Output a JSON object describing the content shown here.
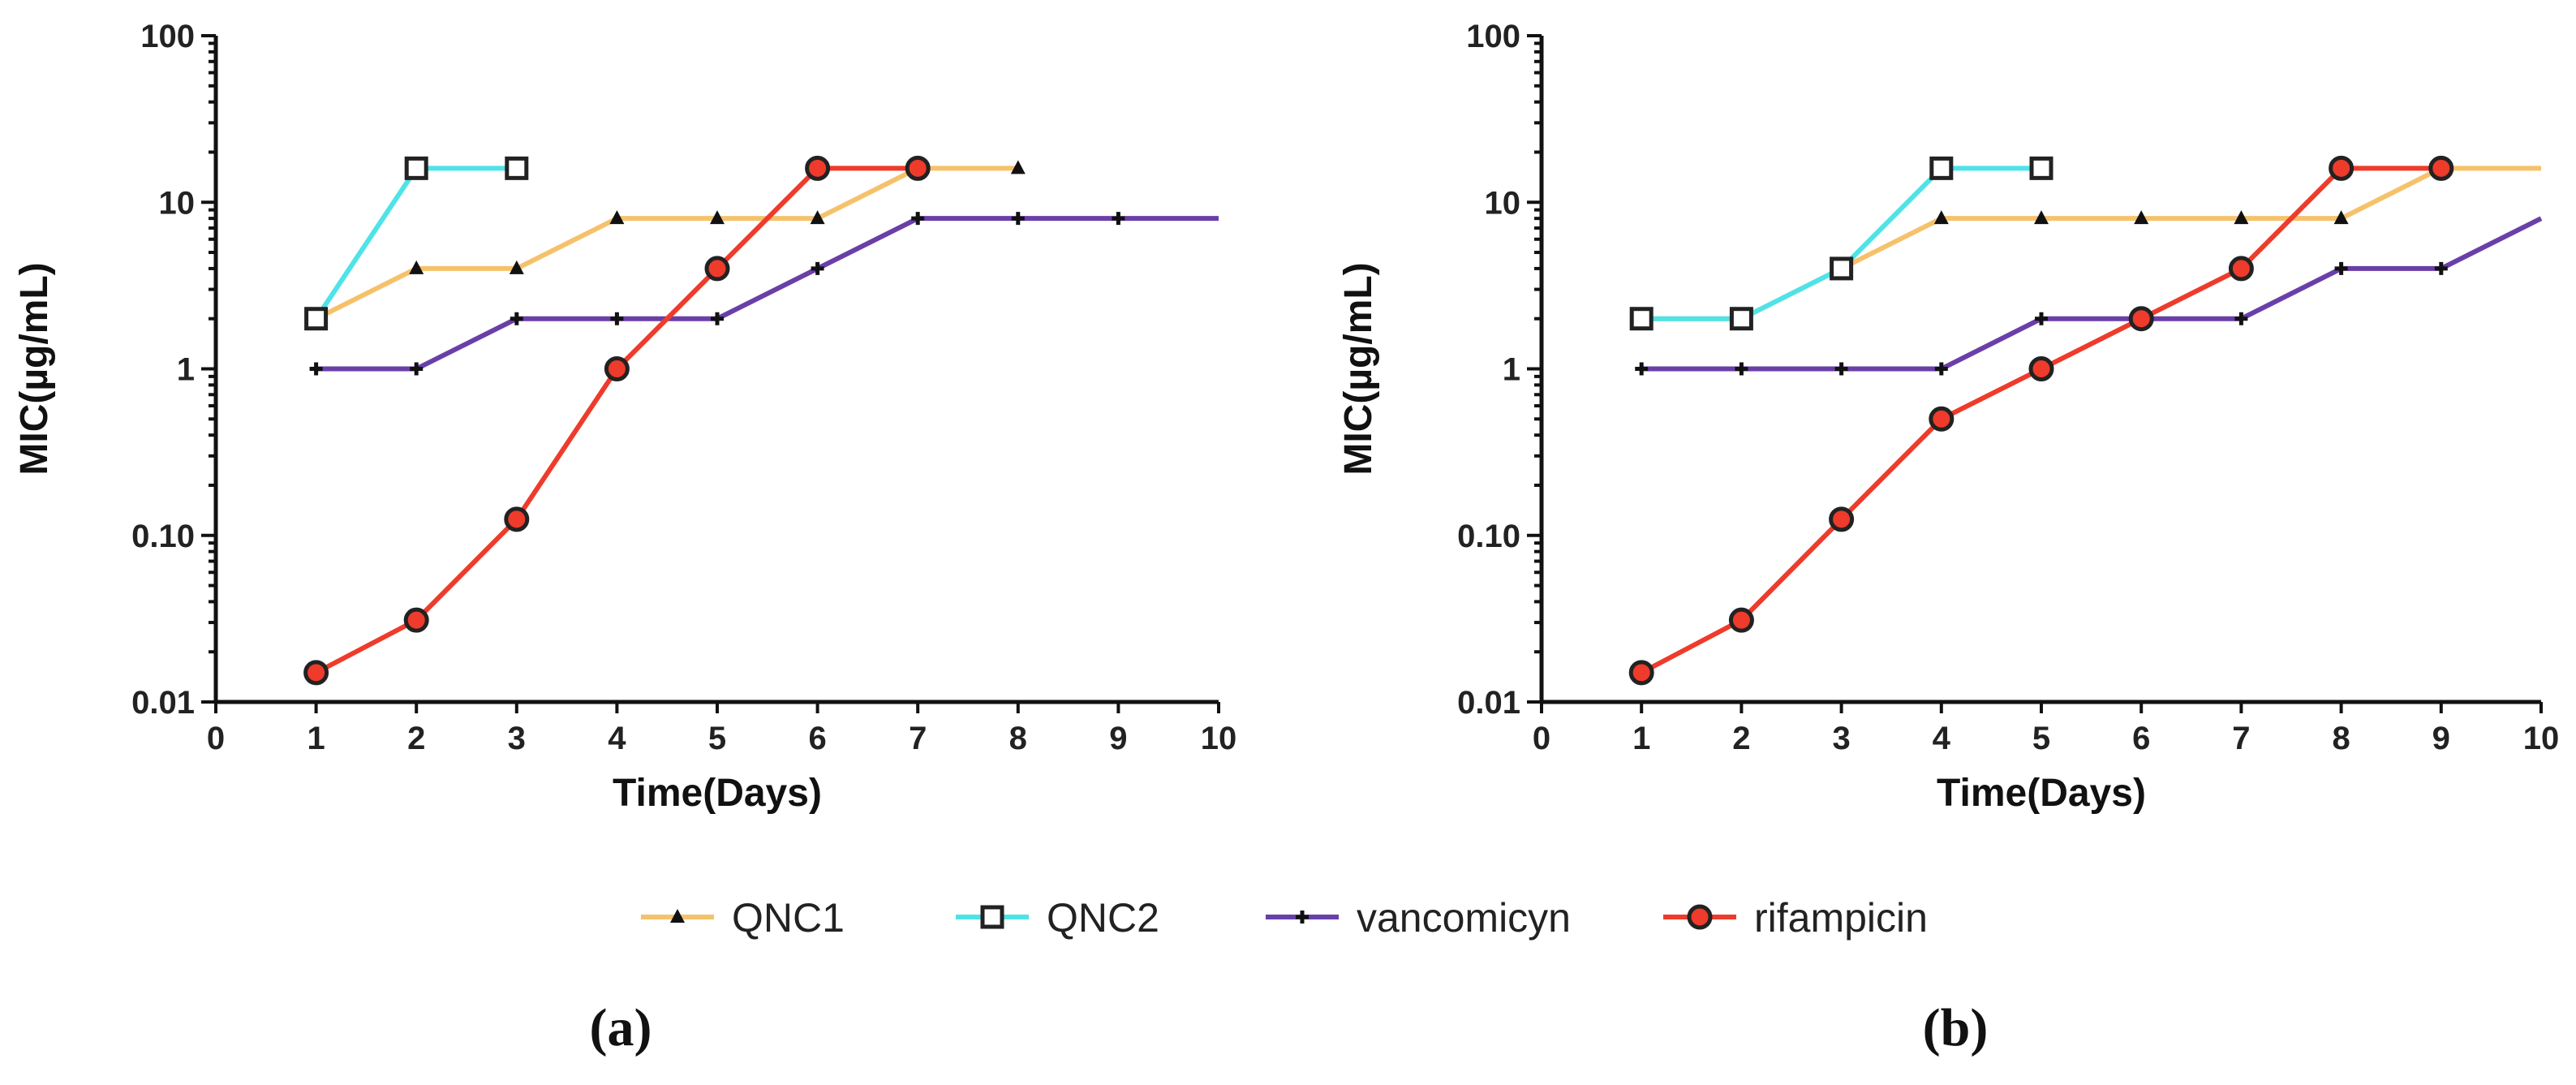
{
  "legend": [
    {
      "key": "qnc1",
      "label": "QNC1"
    },
    {
      "key": "qnc2",
      "label": "QNC2"
    },
    {
      "key": "vanc",
      "label": "vancomicyn"
    },
    {
      "key": "rif",
      "label": "rifampicin"
    }
  ],
  "series_styles": {
    "qnc1": {
      "color": "#f5c26b",
      "marker": "triangle"
    },
    "qnc2": {
      "color": "#4fe3e8",
      "marker": "square"
    },
    "vanc": {
      "color": "#6a3fa8",
      "marker": "plus"
    },
    "rif": {
      "color": "#ee3b2b",
      "marker": "circle"
    }
  },
  "chart_data": [
    {
      "type": "line",
      "panel_label": "(a)",
      "xlabel": "Time(Days)",
      "ylabel": "MIC(µg/mL)",
      "xlim": [
        0,
        10
      ],
      "ylim": [
        0.01,
        100
      ],
      "yscale": "log",
      "xticks": [
        "0",
        "1",
        "2",
        "3",
        "4",
        "5",
        "6",
        "7",
        "8",
        "9",
        "10"
      ],
      "yticks": [
        {
          "value": 0.01,
          "label": "0.01"
        },
        {
          "value": 0.1,
          "label": "0.10"
        },
        {
          "value": 1,
          "label": "1"
        },
        {
          "value": 10,
          "label": "10"
        },
        {
          "value": 100,
          "label": "100"
        }
      ],
      "series": [
        {
          "key": "qnc1",
          "name": "QNC1",
          "x": [
            1,
            2,
            3,
            4,
            5,
            6,
            7,
            8
          ],
          "y": [
            2,
            4,
            4,
            8,
            8,
            8,
            16,
            16
          ]
        },
        {
          "key": "qnc2",
          "name": "QNC2",
          "x": [
            1,
            2,
            3
          ],
          "y": [
            2,
            16,
            16
          ]
        },
        {
          "key": "vanc",
          "name": "vancomicyn",
          "x": [
            1,
            2,
            3,
            4,
            5,
            6,
            7,
            8,
            9,
            10
          ],
          "y": [
            1,
            1,
            2,
            2,
            2,
            4,
            8,
            8,
            8,
            8
          ],
          "last_marker": false
        },
        {
          "key": "rif",
          "name": "rifampicin",
          "x": [
            1,
            2,
            3,
            4,
            5,
            6,
            7
          ],
          "y": [
            0.015,
            0.031,
            0.125,
            1,
            4,
            16,
            16
          ]
        }
      ]
    },
    {
      "type": "line",
      "panel_label": "(b)",
      "xlabel": "Time(Days)",
      "ylabel": "MIC(µg/mL)",
      "xlim": [
        0,
        10
      ],
      "ylim": [
        0.01,
        100
      ],
      "yscale": "log",
      "xticks": [
        "0",
        "1",
        "2",
        "3",
        "4",
        "5",
        "6",
        "7",
        "8",
        "9",
        "10"
      ],
      "yticks": [
        {
          "value": 0.01,
          "label": "0.01"
        },
        {
          "value": 0.1,
          "label": "0.10"
        },
        {
          "value": 1,
          "label": "1"
        },
        {
          "value": 10,
          "label": "10"
        },
        {
          "value": 100,
          "label": "100"
        }
      ],
      "series": [
        {
          "key": "qnc1",
          "name": "QNC1",
          "x": [
            1,
            2,
            3,
            4,
            5,
            6,
            7,
            8,
            9,
            10
          ],
          "y": [
            2,
            2,
            4,
            8,
            8,
            8,
            8,
            8,
            16,
            16
          ],
          "last_marker": false
        },
        {
          "key": "qnc2",
          "name": "QNC2",
          "x": [
            1,
            2,
            3,
            4,
            5
          ],
          "y": [
            2,
            2,
            4,
            16,
            16
          ]
        },
        {
          "key": "vanc",
          "name": "vancomicyn",
          "x": [
            1,
            2,
            3,
            4,
            5,
            6,
            7,
            8,
            9,
            10
          ],
          "y": [
            1,
            1,
            1,
            1,
            2,
            2,
            2,
            4,
            4,
            8
          ],
          "last_marker": false
        },
        {
          "key": "rif",
          "name": "rifampicin",
          "x": [
            1,
            2,
            3,
            4,
            5,
            6,
            7,
            8,
            9
          ],
          "y": [
            0.015,
            0.031,
            0.125,
            0.5,
            1,
            2,
            4,
            16,
            16
          ]
        }
      ]
    }
  ]
}
